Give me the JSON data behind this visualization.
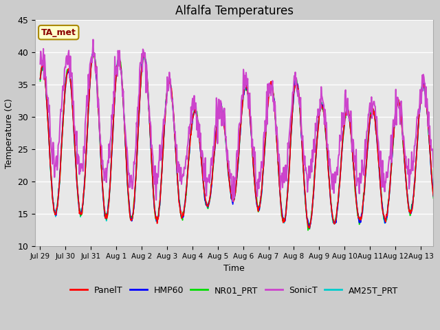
{
  "title": "Alfalfa Temperatures",
  "xlabel": "Time",
  "ylabel": "Temperature (C)",
  "ylim": [
    10,
    45
  ],
  "background_color": "#cccccc",
  "plot_bg_color": "#e8e8e8",
  "annotation_text": "TA_met",
  "annotation_color": "#8B0000",
  "annotation_bg": "#ffffcc",
  "series": {
    "PanelT": {
      "color": "#ff0000",
      "lw": 1.2,
      "zorder": 5
    },
    "HMP60": {
      "color": "#0000ff",
      "lw": 1.2,
      "zorder": 4
    },
    "NR01_PRT": {
      "color": "#00dd00",
      "lw": 1.2,
      "zorder": 3
    },
    "SonicT": {
      "color": "#cc44cc",
      "lw": 1.5,
      "zorder": 6
    },
    "AM25T_PRT": {
      "color": "#00cccc",
      "lw": 1.2,
      "zorder": 2
    }
  },
  "tick_labels": [
    "Jul 29",
    "Jul 30",
    "Jul 31",
    "Aug 1",
    "Aug 2",
    "Aug 3",
    "Aug 4",
    "Aug 5",
    "Aug 6",
    "Aug 7",
    "Aug 8",
    "Aug 9",
    "Aug 10",
    "Aug 11",
    "Aug 12",
    "Aug 13"
  ],
  "yticks": [
    10,
    15,
    20,
    25,
    30,
    35,
    40,
    45
  ],
  "figsize": [
    6.4,
    4.8
  ],
  "dpi": 100
}
